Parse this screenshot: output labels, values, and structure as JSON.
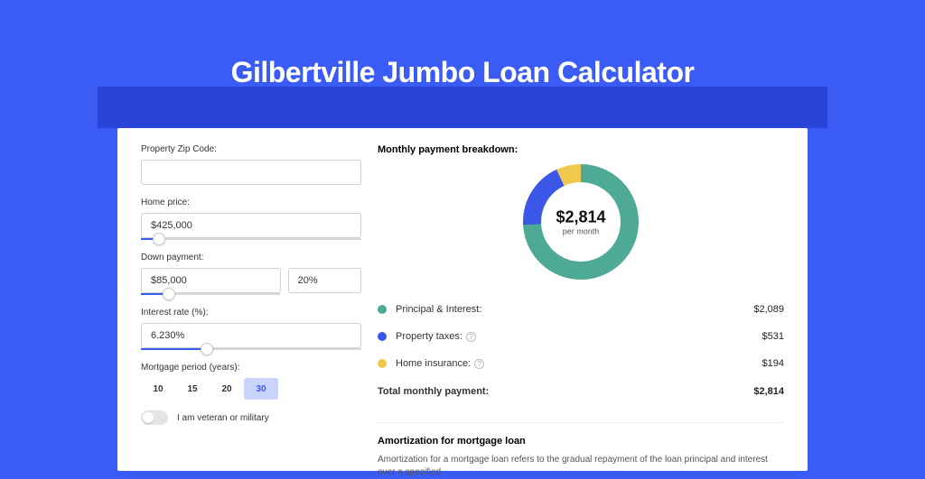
{
  "page": {
    "title": "Gilbertville Jumbo Loan Calculator",
    "bg_color": "#3b5bf5",
    "header_bar_color": "#2845d8",
    "card_bg": "#ffffff"
  },
  "form": {
    "zip": {
      "label": "Property Zip Code:",
      "value": ""
    },
    "home_price": {
      "label": "Home price:",
      "value": "$425,000",
      "slider_pct": 8
    },
    "down_payment": {
      "label": "Down payment:",
      "amount": "$85,000",
      "pct": "20%",
      "slider_pct": 20
    },
    "interest_rate": {
      "label": "Interest rate (%):",
      "value": "6.230%",
      "slider_pct": 30
    },
    "mortgage_period": {
      "label": "Mortgage period (years):",
      "options": [
        "10",
        "15",
        "20",
        "30"
      ],
      "selected_index": 3,
      "active_bg": "#c9d4fc",
      "active_color": "#3b5bf5"
    },
    "veteran": {
      "label": "I am veteran or military",
      "on": false
    }
  },
  "breakdown": {
    "title": "Monthly payment breakdown:",
    "center_amount": "$2,814",
    "center_sub": "per month",
    "donut": {
      "radius": 54,
      "stroke_width": 20,
      "circumference": 339.29,
      "segments": [
        {
          "name": "principal_interest",
          "color": "#4ea995",
          "fraction": 0.742,
          "rot_deg": -90
        },
        {
          "name": "property_taxes",
          "color": "#3a57e8",
          "fraction": 0.189,
          "rot_deg": 177.1
        },
        {
          "name": "home_insurance",
          "color": "#efc94c",
          "fraction": 0.069,
          "rot_deg": 245.2
        }
      ]
    },
    "line_items": [
      {
        "name": "principal_interest",
        "label": "Principal & Interest:",
        "value": "$2,089",
        "color": "#4ea995",
        "info": false
      },
      {
        "name": "property_taxes",
        "label": "Property taxes:",
        "value": "$531",
        "color": "#3a57e8",
        "info": true
      },
      {
        "name": "home_insurance",
        "label": "Home insurance:",
        "value": "$194",
        "color": "#efc94c",
        "info": true
      }
    ],
    "total": {
      "label": "Total monthly payment:",
      "value": "$2,814"
    }
  },
  "amort": {
    "title": "Amortization for mortgage loan",
    "text": "Amortization for a mortgage loan refers to the gradual repayment of the loan principal and interest over a specified"
  }
}
